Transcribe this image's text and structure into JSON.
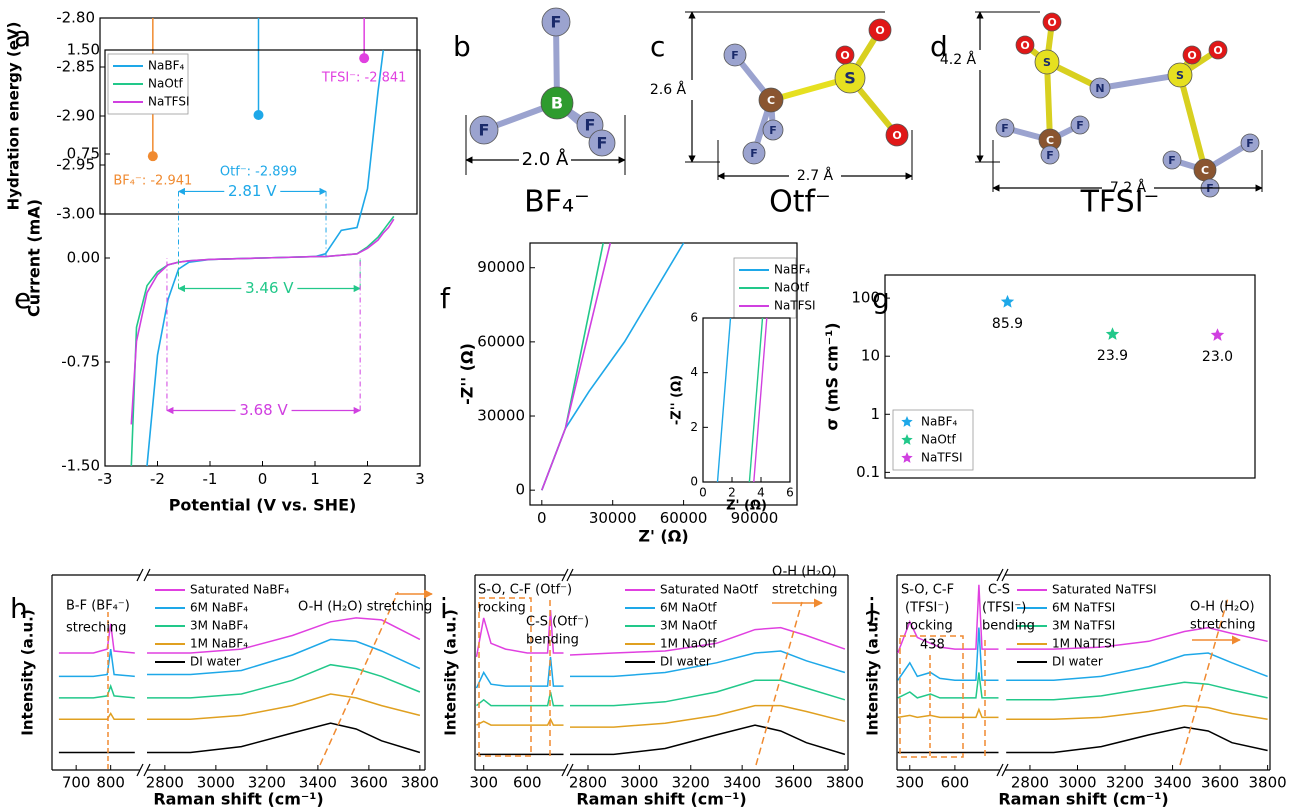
{
  "chart_data": [
    {
      "panel": "a",
      "type": "stem",
      "ylabel": "Hydration energy (eV)",
      "categories": [
        null,
        null,
        null
      ],
      "values": [
        -2.941,
        -2.899,
        -2.841
      ],
      "value_labels": [
        "BF₄⁻: -2.941",
        "Otf⁻: -2.899",
        "TFSI⁻: -2.841"
      ],
      "colors": [
        "#f08a30",
        "#1ea8e8",
        "#e040e0"
      ],
      "ylim": [
        -3.0,
        -2.8
      ],
      "yticks": [
        {
          "value": -2.8,
          "label": "-2.80"
        },
        {
          "value": -2.85,
          "label": "-2.85"
        },
        {
          "value": -2.9,
          "label": "-2.90"
        },
        {
          "value": -2.95,
          "label": "-2.95"
        },
        {
          "value": -3.0,
          "label": "-3.00"
        }
      ]
    },
    {
      "panel": "e",
      "type": "line",
      "xlabel": "Potential (V vs. SHE)",
      "ylabel": "Current (mA)",
      "x": [
        -2.5,
        -2.4,
        -2.2,
        -2.0,
        -1.8,
        -1.6,
        -1.4,
        -1.0,
        0,
        1.0,
        1.2,
        1.5,
        1.8,
        2.0,
        2.2,
        2.3,
        2.4,
        2.5
      ],
      "series": [
        {
          "name": "NaBF₄",
          "color": "#1ea8e8",
          "values": [
            null,
            null,
            -1.5,
            -0.7,
            -0.3,
            -0.08,
            -0.03,
            -0.01,
            0,
            0.01,
            0.03,
            0.2,
            0.22,
            0.5,
            1.2,
            1.5,
            null,
            null
          ]
        },
        {
          "name": "NaOtf",
          "color": "#22c88a",
          "values": [
            -1.5,
            -0.5,
            -0.2,
            -0.1,
            -0.05,
            -0.03,
            -0.02,
            -0.01,
            0,
            0.01,
            0.01,
            0.02,
            0.03,
            0.08,
            0.15,
            0.2,
            0.25,
            0.3
          ]
        },
        {
          "name": "NaTFSI",
          "color": "#d040e0",
          "values": [
            -1.2,
            -0.6,
            -0.25,
            -0.12,
            -0.05,
            -0.03,
            -0.02,
            -0.01,
            0,
            0.01,
            0.01,
            0.02,
            0.03,
            0.07,
            0.13,
            0.18,
            0.22,
            0.28
          ]
        }
      ],
      "annotations": [
        {
          "text": "2.81 V",
          "x": [
            -1.6,
            1.21
          ],
          "y": 0.48
        },
        {
          "text": "3.46 V",
          "x": [
            -1.6,
            1.86
          ],
          "y": -0.22
        },
        {
          "text": "3.68 V",
          "x": [
            -1.82,
            1.86
          ],
          "y": -1.1
        }
      ],
      "xlim": [
        -3,
        3
      ],
      "xticks": [
        -3,
        -2,
        -1,
        0,
        1,
        2,
        3
      ],
      "ylim": [
        -1.5,
        1.5
      ],
      "yticks": [
        {
          "value": 1.5,
          "label": "1.50"
        },
        {
          "value": 0.75,
          "label": "0.75"
        },
        {
          "value": 0,
          "label": "0.00"
        },
        {
          "value": -0.75,
          "label": "-0.75"
        },
        {
          "value": -1.5,
          "label": "-1.50"
        }
      ],
      "legend": "upper left"
    },
    {
      "panel": "f",
      "type": "line",
      "xlabel": "Z' (Ω)",
      "ylabel": "-Z'' (Ω)",
      "series": [
        {
          "name": "NaBF₄",
          "color": "#1ea8e8",
          "x": [
            0,
            10000,
            20000,
            35000,
            60000
          ],
          "values": [
            0,
            25000,
            40000,
            60000,
            100000
          ]
        },
        {
          "name": "NaOtf",
          "color": "#22c88a",
          "x": [
            0,
            10000,
            26000
          ],
          "values": [
            0,
            25000,
            100000
          ]
        },
        {
          "name": "NaTFSI",
          "color": "#d040e0",
          "x": [
            0,
            10000,
            29000
          ],
          "values": [
            0,
            25000,
            100000
          ]
        }
      ],
      "xlim": [
        -5000,
        108000
      ],
      "xticks": [
        0,
        30000,
        60000,
        90000
      ],
      "ylim": [
        -6000,
        100000
      ],
      "yticks": [
        0,
        30000,
        60000,
        90000
      ],
      "legend": "upper right",
      "inset": {
        "xlabel": "Z' (Ω)",
        "ylabel": "-Z'' (Ω)",
        "xlim": [
          0,
          6
        ],
        "ylim": [
          0,
          6
        ],
        "xticks": [
          0,
          2,
          4,
          6
        ],
        "yticks": [
          0,
          2,
          4,
          6
        ],
        "series": [
          {
            "x": [
              1,
              1.9
            ],
            "values": [
              0,
              6
            ]
          },
          {
            "x": [
              3.2,
              4.1
            ],
            "values": [
              0,
              6
            ]
          },
          {
            "x": [
              3.5,
              4.4
            ],
            "values": [
              0,
              6
            ]
          }
        ]
      }
    },
    {
      "panel": "g",
      "type": "scatter",
      "ylabel": "σ (mS cm⁻¹)",
      "log_y": true,
      "categories": [
        null,
        null,
        null
      ],
      "names": [
        "NaBF₄",
        "NaOtf",
        "NaTFSI"
      ],
      "colors": [
        "#1ea8e8",
        "#22c88a",
        "#d040e0"
      ],
      "values": [
        85.9,
        23.9,
        23.0
      ],
      "value_labels": [
        "85.9",
        "23.9",
        "23.0"
      ],
      "ylim": [
        0.08,
        250
      ],
      "yticks": [
        0.1,
        1,
        10,
        100
      ],
      "legend": "lower left"
    },
    {
      "panel": "h",
      "type": "spectra",
      "xlabel": "Raman shift (cm⁻¹)",
      "ylabel": "Intensity (a.u.)",
      "segments": [
        {
          "xlim": [
            630,
            885
          ],
          "xticks": [
            700,
            800
          ]
        },
        {
          "xlim": [
            2730,
            3820
          ],
          "xticks": [
            2800,
            3000,
            3200,
            3400,
            3600,
            3800
          ]
        }
      ],
      "ylim": [
        0,
        10
      ],
      "x": [
        650,
        750,
        790,
        800,
        810,
        870,
        2730,
        2900,
        3100,
        3300,
        3450,
        3550,
        3650,
        3800
      ],
      "series": [
        {
          "name": "Saturated NaBF₄",
          "color": "#e040e0",
          "values": [
            6.0,
            6.0,
            6.2,
            7.5,
            6.1,
            6.0,
            6.0,
            6.0,
            6.2,
            6.9,
            7.6,
            7.8,
            7.7,
            6.7
          ]
        },
        {
          "name": "6M NaBF₄",
          "color": "#1ea8e8",
          "values": [
            4.8,
            4.8,
            4.9,
            6.2,
            4.9,
            4.8,
            4.9,
            4.9,
            5.1,
            5.9,
            6.7,
            6.6,
            6.1,
            5.2
          ]
        },
        {
          "name": "3M NaBF₄",
          "color": "#22c88a",
          "values": [
            3.7,
            3.7,
            3.8,
            4.3,
            3.8,
            3.7,
            3.7,
            3.7,
            3.9,
            4.6,
            5.4,
            5.2,
            4.8,
            4.0
          ]
        },
        {
          "name": "1M NaBF₄",
          "color": "#e0a020",
          "values": [
            2.6,
            2.6,
            2.6,
            2.9,
            2.6,
            2.6,
            2.6,
            2.6,
            2.8,
            3.3,
            3.9,
            3.7,
            3.3,
            2.8
          ]
        },
        {
          "name": "DI water",
          "color": "#000000",
          "values": [
            0.9,
            0.9,
            0.9,
            0.9,
            0.9,
            0.9,
            0.9,
            0.9,
            1.2,
            1.9,
            2.4,
            2.1,
            1.5,
            0.9
          ]
        }
      ],
      "annotations": [
        "B-F (BF₄⁻)",
        "streching",
        "O-H (H₂O) stretching"
      ]
    },
    {
      "panel": "i",
      "type": "spectra",
      "xlabel": "Raman shift (cm⁻¹)",
      "ylabel": "Intensity (a.u.)",
      "segments": [
        {
          "xlim": [
            240,
            860
          ],
          "xticks": [
            300,
            600
          ]
        },
        {
          "xlim": [
            2730,
            3812
          ],
          "xticks": [
            2800,
            3000,
            3200,
            3400,
            3600,
            3800
          ]
        }
      ],
      "ylim": [
        0,
        10
      ],
      "x": [
        250,
        300,
        350,
        450,
        600,
        740,
        760,
        780,
        850,
        2730,
        2900,
        3100,
        3300,
        3450,
        3550,
        3650,
        3800
      ],
      "series": [
        {
          "name": "Saturated NaOtf",
          "color": "#e040e0",
          "values": [
            5.8,
            7.8,
            6.5,
            6.2,
            6.0,
            6.0,
            8.2,
            6.0,
            6.0,
            5.9,
            6.0,
            6.1,
            6.5,
            7.2,
            7.3,
            6.9,
            6.2
          ]
        },
        {
          "name": "6M NaOtf",
          "color": "#1ea8e8",
          "values": [
            4.2,
            5.0,
            4.4,
            4.3,
            4.3,
            4.3,
            5.8,
            4.3,
            4.3,
            4.8,
            4.8,
            5.0,
            5.5,
            6.0,
            6.1,
            5.6,
            5.0
          ]
        },
        {
          "name": "3M NaOtf",
          "color": "#22c88a",
          "values": [
            3.3,
            3.6,
            3.3,
            3.3,
            3.3,
            3.3,
            4.0,
            3.3,
            3.3,
            3.3,
            3.3,
            3.5,
            4.0,
            4.6,
            4.6,
            4.2,
            3.6
          ]
        },
        {
          "name": "1M NaOtf",
          "color": "#e0a020",
          "values": [
            2.3,
            2.5,
            2.3,
            2.3,
            2.3,
            2.3,
            2.6,
            2.3,
            2.3,
            2.2,
            2.2,
            2.4,
            2.8,
            3.3,
            3.3,
            3.0,
            2.5
          ]
        },
        {
          "name": "DI water",
          "color": "#000000",
          "values": [
            0.8,
            0.8,
            0.8,
            0.8,
            0.8,
            0.8,
            0.8,
            0.8,
            0.8,
            0.8,
            0.8,
            1.1,
            1.8,
            2.3,
            2.0,
            1.4,
            0.8
          ]
        }
      ],
      "annotations": [
        "S-O, C-F (Otf⁻)",
        "rocking",
        "C-S (Otf⁻)",
        "bending",
        "O-H (H₂O)",
        "stretching"
      ]
    },
    {
      "panel": "j",
      "type": "spectra",
      "xlabel": "Raman shift (cm⁻¹)",
      "ylabel": "Intensity (a.u.)",
      "segments": [
        {
          "xlim": [
            215,
            900
          ],
          "xticks": [
            300,
            600
          ]
        },
        {
          "xlim": [
            2695,
            3810
          ],
          "xticks": [
            2800,
            3000,
            3200,
            3400,
            3600,
            3800
          ]
        }
      ],
      "ylim": [
        0,
        10
      ],
      "x": [
        220,
        300,
        350,
        438,
        500,
        600,
        740,
        760,
        780,
        890,
        2700,
        2900,
        3100,
        3300,
        3450,
        3550,
        3650,
        3800
      ],
      "series": [
        {
          "name": "Saturated NaTFSI",
          "color": "#e040e0",
          "values": [
            6.0,
            7.6,
            6.8,
            6.5,
            6.3,
            6.2,
            6.2,
            9.5,
            6.2,
            6.2,
            6.2,
            6.2,
            6.3,
            6.6,
            7.1,
            7.3,
            7.0,
            6.6
          ]
        },
        {
          "name": "6M NaTFSI",
          "color": "#1ea8e8",
          "values": [
            4.6,
            5.5,
            4.8,
            5.0,
            4.7,
            4.6,
            4.6,
            7.3,
            4.6,
            4.6,
            4.6,
            4.6,
            4.8,
            5.3,
            5.9,
            6.0,
            5.5,
            4.8
          ]
        },
        {
          "name": "3M NaTFSI",
          "color": "#22c88a",
          "values": [
            3.7,
            4.0,
            3.7,
            3.9,
            3.7,
            3.7,
            3.7,
            5.0,
            3.7,
            3.7,
            3.6,
            3.6,
            3.8,
            4.2,
            4.5,
            4.4,
            4.1,
            3.7
          ]
        },
        {
          "name": "1M NaTFSI",
          "color": "#e0a020",
          "values": [
            2.7,
            2.8,
            2.7,
            2.8,
            2.7,
            2.7,
            2.7,
            3.1,
            2.7,
            2.7,
            2.6,
            2.6,
            2.7,
            3.0,
            3.3,
            3.2,
            2.9,
            2.6
          ]
        },
        {
          "name": "DI water",
          "color": "#000000",
          "values": [
            0.9,
            0.9,
            0.9,
            0.9,
            0.9,
            0.9,
            0.9,
            0.9,
            0.9,
            0.9,
            0.9,
            0.9,
            1.2,
            1.8,
            2.2,
            2.0,
            1.4,
            1.0
          ]
        }
      ],
      "annotations": [
        "S-O, C-F",
        "(TFSI⁻)",
        "rocking",
        "438",
        "C-S",
        "(TFSI⁻)",
        "bending",
        "O-H (H₂O)",
        "stretching"
      ]
    }
  ],
  "structures": [
    {
      "panel": "b",
      "name": "BF₄⁻",
      "atoms": [
        "F",
        "B",
        "F",
        "F",
        "F"
      ],
      "dimensions": [
        "2.0 Å"
      ]
    },
    {
      "panel": "c",
      "name": "Otf⁻",
      "atoms": [
        "F",
        "F",
        "F",
        "C",
        "S",
        "O",
        "O",
        "O"
      ],
      "dimensions": [
        "2.6 Å",
        "2.7 Å"
      ]
    },
    {
      "panel": "d",
      "name": "TFSI⁻",
      "atoms": [
        "O",
        "O",
        "S",
        "N",
        "S",
        "O",
        "O",
        "C",
        "F",
        "F",
        "F",
        "C",
        "F",
        "F",
        "F"
      ],
      "dimensions": [
        "4.2 Å",
        "7.2 Å"
      ]
    }
  ]
}
